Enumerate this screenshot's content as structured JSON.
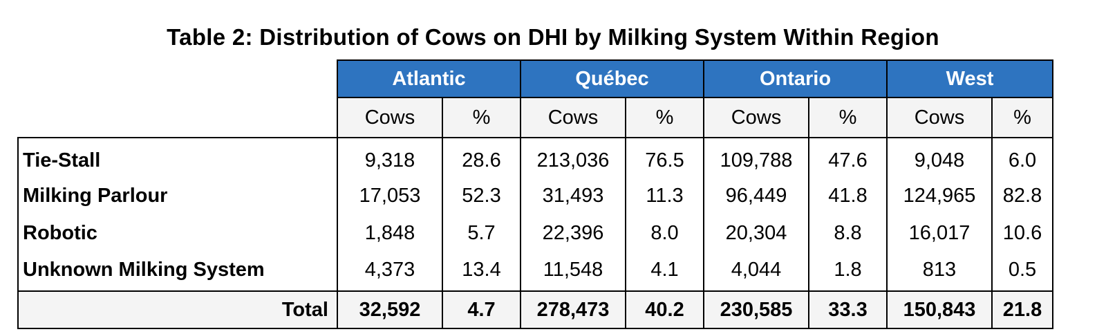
{
  "title": "Table 2: Distribution of Cows on DHI by Milking System Within Region",
  "colors": {
    "header_bg": "#2e74c0",
    "header_text": "#ffffff",
    "subhead_bg": "#f4f4f4",
    "total_bg": "#f4f4f4",
    "border": "#000000"
  },
  "regions": [
    "Atlantic",
    "Québec",
    "Ontario",
    "West"
  ],
  "subheaders": [
    "Cows",
    "%",
    "Cows",
    "%",
    "Cows",
    "%",
    "Cows",
    "%"
  ],
  "rows": [
    {
      "label": "Tie-Stall",
      "values": [
        "9,318",
        "28.6",
        "213,036",
        "76.5",
        "109,788",
        "47.6",
        "9,048",
        "6.0"
      ]
    },
    {
      "label": "Milking Parlour",
      "values": [
        "17,053",
        "52.3",
        "31,493",
        "11.3",
        "96,449",
        "41.8",
        "124,965",
        "82.8"
      ]
    },
    {
      "label": "Robotic",
      "values": [
        "1,848",
        "5.7",
        "22,396",
        "8.0",
        "20,304",
        "8.8",
        "16,017",
        "10.6"
      ]
    },
    {
      "label": "Unknown Milking System",
      "values": [
        "4,373",
        "13.4",
        "11,548",
        "4.1",
        "4,044",
        "1.8",
        "813",
        "0.5"
      ]
    }
  ],
  "total": {
    "label": "Total",
    "values": [
      "32,592",
      "4.7",
      "278,473",
      "40.2",
      "230,585",
      "33.3",
      "150,843",
      "21.8"
    ]
  }
}
